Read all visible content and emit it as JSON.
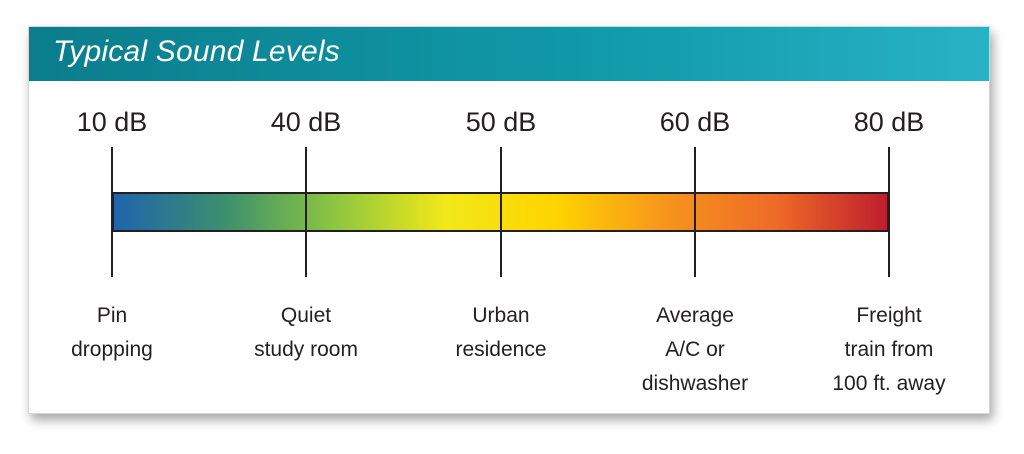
{
  "title": "Typical Sound Levels",
  "gradient_colors": [
    "#1f64ad",
    "#3d8f6e",
    "#8dc63f",
    "#f2e819",
    "#ffd400",
    "#f7941d",
    "#ee6a27",
    "#be1e2d"
  ],
  "levels": [
    {
      "db": "10 dB",
      "description": "Pin\ndropping"
    },
    {
      "db": "40 dB",
      "description": "Quiet\nstudy room"
    },
    {
      "db": "50 dB",
      "description": "Urban\nresidence"
    },
    {
      "db": "60 dB",
      "description": "Average\nA/C or\ndishwasher"
    },
    {
      "db": "80 dB",
      "description": "Freight\ntrain from\n100 ft. away"
    }
  ]
}
